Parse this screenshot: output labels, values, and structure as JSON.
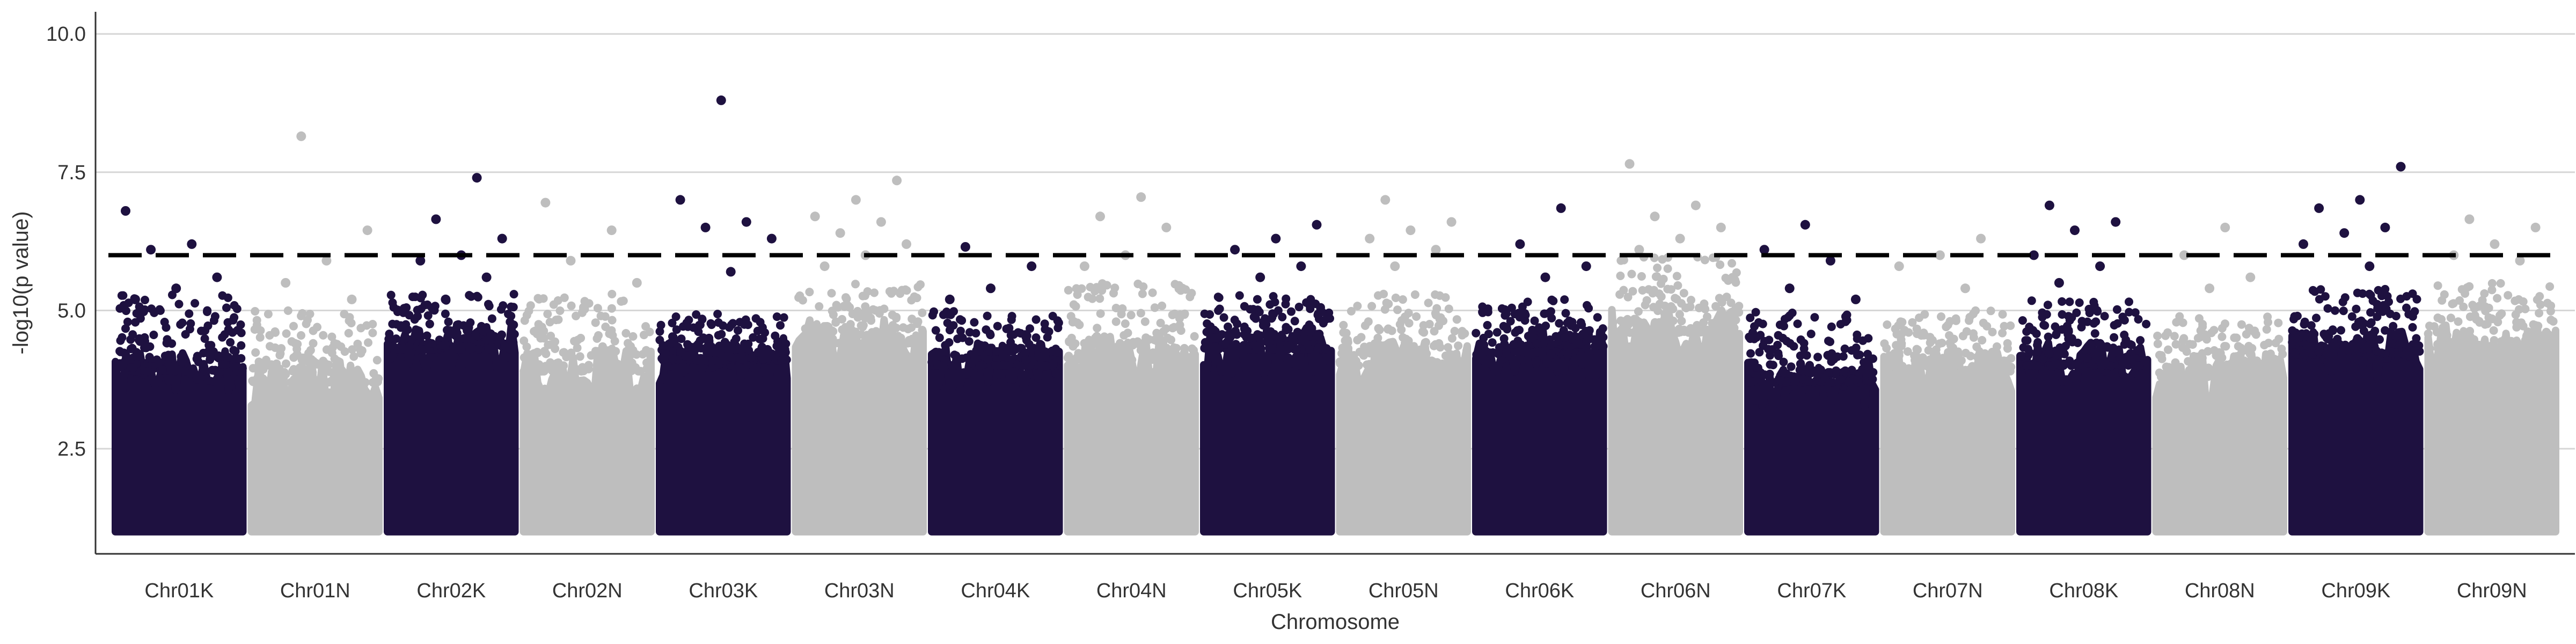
{
  "chart_data": {
    "type": "scatter",
    "subtype": "manhattan",
    "title": "",
    "xlabel": "Chromosome",
    "ylabel": "-log10(p value)",
    "ylim": [
      0.6,
      10.4
    ],
    "yticks": [
      "2.5",
      "5.0",
      "7.5",
      "10.0"
    ],
    "ytick_values": [
      2.5,
      5.0,
      7.5,
      10.0
    ],
    "grid": "horizontal major gridlines",
    "legend": "none",
    "threshold": {
      "value": 6.0,
      "style": "dashed",
      "color": "#000000"
    },
    "colors": {
      "odd": "#1e1140",
      "even": "#bebebe"
    },
    "min_plotted": 1.0,
    "chromosomes": [
      {
        "name": "Chr01K",
        "color": "#1e1140",
        "base_top": 3.9,
        "max_dense": 5.3,
        "top_hits": [
          6.8,
          6.2,
          6.1,
          5.6,
          5.4,
          5.2
        ]
      },
      {
        "name": "Chr01N",
        "color": "#bebebe",
        "base_top": 3.7,
        "max_dense": 5.0,
        "top_hits": [
          8.15,
          6.45,
          5.9,
          5.5,
          5.2
        ]
      },
      {
        "name": "Chr02K",
        "color": "#1e1140",
        "base_top": 4.3,
        "max_dense": 5.3,
        "top_hits": [
          7.4,
          6.65,
          6.3,
          6.0,
          5.9,
          5.6,
          5.2
        ]
      },
      {
        "name": "Chr02N",
        "color": "#bebebe",
        "base_top": 3.9,
        "max_dense": 5.3,
        "top_hits": [
          6.95,
          6.45,
          5.9,
          5.5
        ]
      },
      {
        "name": "Chr03K",
        "color": "#1e1140",
        "base_top": 4.1,
        "max_dense": 5.0,
        "top_hits": [
          8.8,
          7.0,
          6.6,
          6.5,
          6.3,
          5.7
        ]
      },
      {
        "name": "Chr03N",
        "color": "#bebebe",
        "base_top": 4.4,
        "max_dense": 5.5,
        "top_hits": [
          7.35,
          7.0,
          6.7,
          6.6,
          6.4,
          6.2,
          6.0,
          5.8
        ]
      },
      {
        "name": "Chr04K",
        "color": "#1e1140",
        "base_top": 4.0,
        "max_dense": 5.0,
        "top_hits": [
          6.15,
          5.8,
          5.4,
          5.2
        ]
      },
      {
        "name": "Chr04N",
        "color": "#bebebe",
        "base_top": 4.1,
        "max_dense": 5.5,
        "top_hits": [
          7.05,
          6.7,
          6.5,
          6.0,
          5.8
        ]
      },
      {
        "name": "Chr05K",
        "color": "#1e1140",
        "base_top": 4.3,
        "max_dense": 5.3,
        "top_hits": [
          6.55,
          6.3,
          6.1,
          5.8,
          5.6
        ]
      },
      {
        "name": "Chr05N",
        "color": "#bebebe",
        "base_top": 4.0,
        "max_dense": 5.3,
        "top_hits": [
          7.0,
          6.6,
          6.45,
          6.3,
          6.1,
          5.8
        ]
      },
      {
        "name": "Chr06K",
        "color": "#1e1140",
        "base_top": 4.2,
        "max_dense": 5.2,
        "top_hits": [
          6.85,
          6.2,
          5.8,
          5.6
        ]
      },
      {
        "name": "Chr06N",
        "color": "#bebebe",
        "base_top": 4.6,
        "max_dense": 6.0,
        "top_hits": [
          7.65,
          6.9,
          6.7,
          6.5,
          6.3,
          6.1
        ]
      },
      {
        "name": "Chr07K",
        "color": "#1e1140",
        "base_top": 3.7,
        "max_dense": 5.0,
        "top_hits": [
          6.55,
          6.1,
          5.9,
          5.4,
          5.2
        ]
      },
      {
        "name": "Chr07N",
        "color": "#bebebe",
        "base_top": 3.9,
        "max_dense": 5.0,
        "top_hits": [
          6.3,
          6.0,
          5.8,
          5.4
        ]
      },
      {
        "name": "Chr08K",
        "color": "#1e1140",
        "base_top": 4.0,
        "max_dense": 5.2,
        "top_hits": [
          6.9,
          6.6,
          6.45,
          6.0,
          5.8,
          5.5
        ]
      },
      {
        "name": "Chr08N",
        "color": "#bebebe",
        "base_top": 3.8,
        "max_dense": 4.9,
        "top_hits": [
          6.5,
          6.0,
          5.6,
          5.4
        ]
      },
      {
        "name": "Chr09K",
        "color": "#1e1140",
        "base_top": 4.2,
        "max_dense": 5.4,
        "top_hits": [
          7.6,
          7.0,
          6.85,
          6.5,
          6.4,
          6.2,
          5.8
        ]
      },
      {
        "name": "Chr09N",
        "color": "#bebebe",
        "base_top": 4.3,
        "max_dense": 5.5,
        "top_hits": [
          6.65,
          6.5,
          6.2,
          6.0,
          5.9
        ]
      }
    ]
  }
}
